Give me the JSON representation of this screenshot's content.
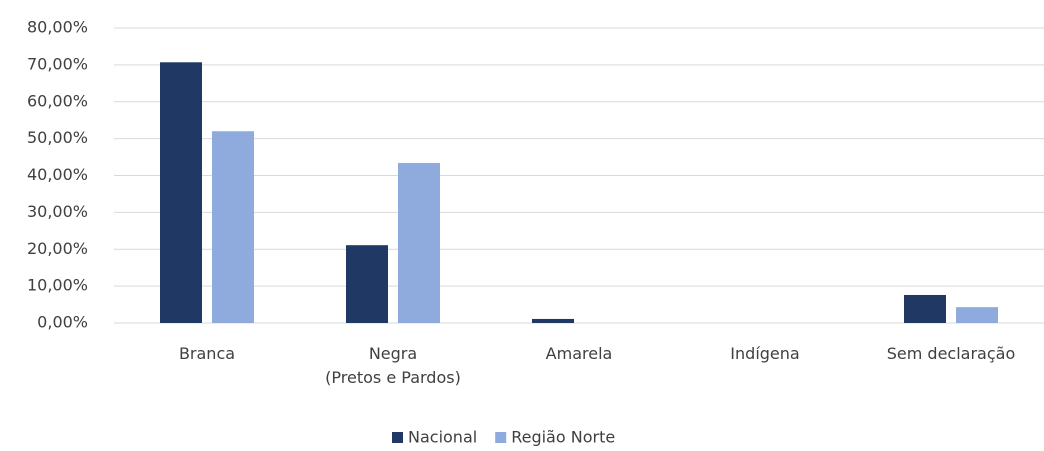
{
  "chart_data": {
    "type": "bar",
    "categories": [
      "Branca",
      "Negra\n(Pretos e Pardos)",
      "Amarela",
      "Indígena",
      "Sem declaração"
    ],
    "series": [
      {
        "name": "Nacional",
        "color": "#203864",
        "values": [
          70.7,
          21.1,
          1.1,
          0,
          7.6
        ]
      },
      {
        "name": "Região Norte",
        "color": "#8faadc",
        "values": [
          52.0,
          43.4,
          0,
          0,
          4.3
        ]
      }
    ],
    "ylim": [
      0,
      80
    ],
    "yticks": [
      {
        "value": 0,
        "label": "0,00%"
      },
      {
        "value": 10,
        "label": "10,00%"
      },
      {
        "value": 20,
        "label": "20,00%"
      },
      {
        "value": 30,
        "label": "30,00%"
      },
      {
        "value": 40,
        "label": "40,00%"
      },
      {
        "value": 50,
        "label": "50,00%"
      },
      {
        "value": 60,
        "label": "60,00%"
      },
      {
        "value": 70,
        "label": "70,00%"
      },
      {
        "value": 80,
        "label": "80,00%"
      }
    ],
    "grid": true,
    "legend": "bottom"
  }
}
